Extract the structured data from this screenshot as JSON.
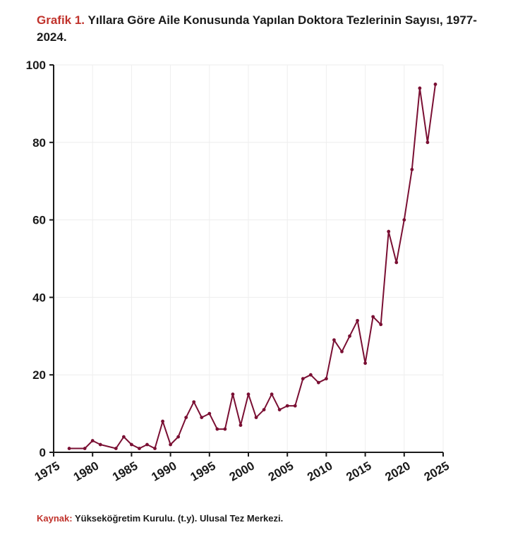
{
  "title": {
    "prefix": "Grafik 1.",
    "text": "Yıllara Göre Aile Konusunda Yapılan Doktora Tezlerinin Sayısı, 1977-2024."
  },
  "source": {
    "prefix": "Kaynak:",
    "text": "Yükseköğretim Kurulu. (t.y). Ulusal Tez Merkezi."
  },
  "colors": {
    "line": "#7a0f33",
    "accent": "#c0322b",
    "grid": "#eeeeee"
  },
  "chart_data": {
    "type": "line",
    "title": "Yıllara Göre Aile Konusunda Yapılan Doktora Tezlerinin Sayısı, 1977-2024.",
    "xlabel": "",
    "ylabel": "",
    "xlim": [
      1975,
      2025
    ],
    "ylim": [
      0,
      100
    ],
    "xticks": [
      1975,
      1980,
      1985,
      1990,
      1995,
      2000,
      2005,
      2010,
      2015,
      2020,
      2025
    ],
    "yticks": [
      0,
      20,
      40,
      60,
      80,
      100
    ],
    "grid": true,
    "series": [
      {
        "x": [
          1977,
          1979,
          1980,
          1981,
          1983,
          1984,
          1985,
          1986,
          1987,
          1988,
          1989,
          1990,
          1991,
          1992,
          1993,
          1994,
          1995,
          1996,
          1997,
          1998,
          1999,
          2000,
          2001,
          2002,
          2003,
          2004,
          2005,
          2006,
          2007,
          2008,
          2009,
          2010,
          2011,
          2012,
          2013,
          2014,
          2015,
          2016,
          2017,
          2018,
          2019,
          2020,
          2021,
          2022,
          2023,
          2024
        ],
        "y": [
          1,
          1,
          3,
          2,
          1,
          4,
          2,
          1,
          2,
          1,
          8,
          2,
          4,
          9,
          13,
          9,
          10,
          6,
          6,
          15,
          7,
          15,
          9,
          11,
          15,
          11,
          12,
          12,
          19,
          20,
          18,
          19,
          29,
          26,
          30,
          34,
          23,
          35,
          33,
          57,
          49,
          60,
          73,
          94,
          80,
          95
        ]
      }
    ]
  }
}
